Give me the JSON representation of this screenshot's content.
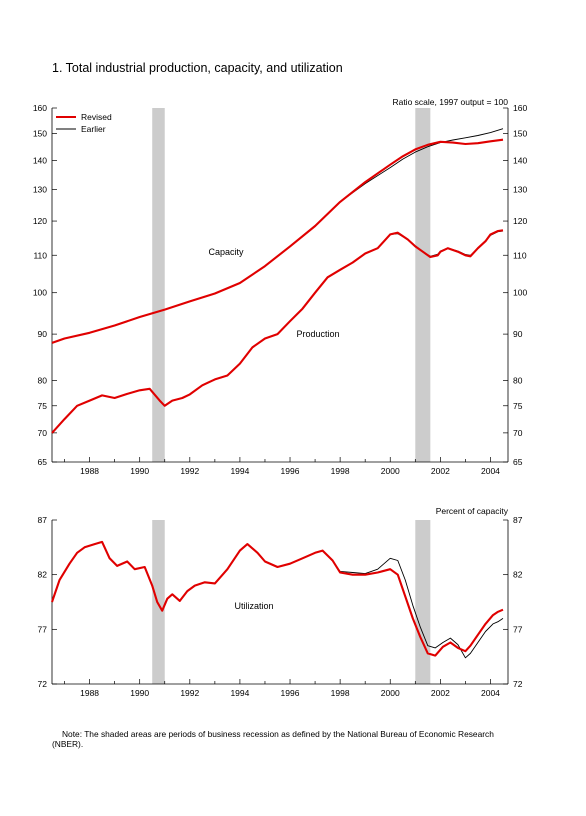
{
  "figure": {
    "title": "1. Total industrial production, capacity, and utilization",
    "note": "Note: The shaded areas are periods of business recession as defined by the National Bureau of Economic Research (NBER)."
  },
  "colors": {
    "revised": "#e00000",
    "earlier": "#000000",
    "recession": "#cccccc"
  },
  "chart_data": [
    {
      "type": "line",
      "title": "",
      "axis_note": "Ratio scale, 1997 output = 100",
      "scale": "log",
      "grid": false,
      "legend_position": "top-left",
      "ylim": [
        65,
        160
      ],
      "xlim": [
        1986.5,
        2004.7
      ],
      "y_ticks": [
        65,
        70,
        75,
        80,
        90,
        100,
        110,
        120,
        130,
        140,
        150,
        160
      ],
      "x_ticks": [
        1988,
        1990,
        1992,
        1994,
        1996,
        1998,
        2000,
        2002,
        2004
      ],
      "x_tick_labels": [
        "1988",
        "1990",
        "1992",
        "1994",
        "1996",
        "1998",
        "2000",
        "2002",
        "2004"
      ],
      "recessions": [
        [
          1990.5,
          1991.0
        ],
        [
          2001.0,
          2001.6
        ]
      ],
      "legend": [
        "Revised",
        "Earlier"
      ],
      "annotations": [
        "Capacity",
        "Production"
      ],
      "series": [
        {
          "name": "Revised",
          "label": "Capacity",
          "x": [
            1986.5,
            1987,
            1988,
            1989,
            1990,
            1991,
            1992,
            1993,
            1994,
            1995,
            1996,
            1997,
            1998,
            1999,
            2000,
            2000.5,
            2001,
            2001.5,
            2002,
            2002.5,
            2003,
            2003.5,
            2004,
            2004.5
          ],
          "y": [
            88,
            89,
            90.3,
            92,
            94,
            95.8,
            97.8,
            99.8,
            102.5,
            107,
            112.5,
            118.5,
            126,
            132.5,
            138.5,
            141.5,
            144,
            145.7,
            146.8,
            146.5,
            146,
            146.3,
            147,
            147.6
          ]
        },
        {
          "name": "Earlier",
          "label": "Capacity",
          "x": [
            1986.5,
            1987,
            1988,
            1989,
            1990,
            1991,
            1992,
            1993,
            1994,
            1995,
            1996,
            1997,
            1998,
            1999,
            2000,
            2000.5,
            2001,
            2001.5,
            2002,
            2002.5,
            2003,
            2003.5,
            2004,
            2004.5
          ],
          "y": [
            88,
            89,
            90.3,
            92,
            94,
            95.8,
            97.8,
            99.8,
            102.5,
            107,
            112.5,
            118.5,
            126,
            132,
            137.5,
            140.5,
            143,
            145,
            146.5,
            147.5,
            148.3,
            149.2,
            150.3,
            151.8
          ]
        },
        {
          "name": "Revised",
          "label": "Production",
          "x": [
            1986.5,
            1987,
            1987.5,
            1988,
            1988.5,
            1989,
            1989.5,
            1990,
            1990.4,
            1990.8,
            1991,
            1991.3,
            1991.7,
            1992,
            1992.5,
            1993,
            1993.5,
            1994,
            1994.5,
            1995,
            1995.5,
            1996,
            1996.5,
            1997,
            1997.5,
            1998,
            1998.5,
            1999,
            1999.5,
            2000,
            2000.3,
            2000.7,
            2001,
            2001.3,
            2001.6,
            2001.9,
            2002,
            2002.3,
            2002.7,
            2003,
            2003.2,
            2003.5,
            2003.8,
            2004,
            2004.3,
            2004.5
          ],
          "y": [
            70,
            72.5,
            75,
            76,
            77,
            76.5,
            77.3,
            78,
            78.3,
            76,
            75,
            76,
            76.5,
            77.2,
            79,
            80.2,
            81,
            83.5,
            87,
            89,
            90,
            93,
            96,
            100,
            104,
            106,
            108,
            110.5,
            112,
            116,
            116.5,
            114.5,
            112.5,
            111,
            109.5,
            110,
            111,
            112,
            111,
            110,
            109.7,
            112,
            114,
            116,
            117,
            117.2
          ]
        },
        {
          "name": "Earlier",
          "label": "Production",
          "x": [
            1986.5,
            1987,
            1987.5,
            1988,
            1988.5,
            1989,
            1989.5,
            1990,
            1990.4,
            1990.8,
            1991,
            1991.3,
            1991.7,
            1992,
            1992.5,
            1993,
            1993.5,
            1994,
            1994.5,
            1995,
            1995.5,
            1996,
            1996.5,
            1997,
            1997.5,
            1998,
            1998.5,
            1999,
            1999.5,
            2000,
            2000.3,
            2000.7,
            2001,
            2001.3,
            2001.6,
            2001.9,
            2002,
            2002.3,
            2002.7,
            2003,
            2003.2,
            2003.5,
            2003.8,
            2004,
            2004.3,
            2004.5
          ],
          "y": [
            70,
            72.5,
            75,
            76,
            77,
            76.5,
            77.3,
            78,
            78.3,
            76,
            75,
            76,
            76.5,
            77.2,
            79,
            80.2,
            81,
            83.5,
            87,
            89,
            90,
            93,
            96,
            100,
            104,
            106,
            108,
            110.5,
            112,
            116,
            116.2,
            114.5,
            112.7,
            111,
            109.7,
            110.3,
            111.2,
            112,
            111.2,
            110.2,
            110,
            112,
            114,
            115.7,
            116.8,
            117
          ]
        }
      ]
    },
    {
      "type": "line",
      "title": "",
      "axis_note": "Percent of capacity",
      "grid": false,
      "ylim": [
        72,
        87
      ],
      "xlim": [
        1986.5,
        2004.7
      ],
      "y_ticks": [
        72,
        77,
        82,
        87
      ],
      "x_ticks": [
        1988,
        1990,
        1992,
        1994,
        1996,
        1998,
        2000,
        2002,
        2004
      ],
      "x_tick_labels": [
        "1988",
        "1990",
        "1992",
        "1994",
        "1996",
        "1998",
        "2000",
        "2002",
        "2004"
      ],
      "recessions": [
        [
          1990.5,
          1991.0
        ],
        [
          2001.0,
          2001.6
        ]
      ],
      "annotations": [
        "Utilization"
      ],
      "series": [
        {
          "name": "Revised",
          "label": "Utilization",
          "x": [
            1986.5,
            1986.8,
            1987.2,
            1987.5,
            1987.8,
            1988.2,
            1988.5,
            1988.8,
            1989.1,
            1989.5,
            1989.8,
            1990.2,
            1990.5,
            1990.7,
            1990.9,
            1991.1,
            1991.3,
            1991.6,
            1991.9,
            1992.2,
            1992.6,
            1993,
            1993.5,
            1994,
            1994.3,
            1994.7,
            1995,
            1995.5,
            1996,
            1996.5,
            1997,
            1997.3,
            1997.7,
            1998,
            1998.5,
            1999,
            1999.5,
            2000,
            2000.3,
            2000.6,
            2000.9,
            2001.2,
            2001.5,
            2001.8,
            2002.1,
            2002.4,
            2002.7,
            2003,
            2003.2,
            2003.5,
            2003.8,
            2004.1,
            2004.3,
            2004.5
          ],
          "y": [
            79.5,
            81.5,
            83,
            84,
            84.5,
            84.8,
            85,
            83.5,
            82.8,
            83.2,
            82.5,
            82.7,
            81,
            79.5,
            78.7,
            79.8,
            80.2,
            79.6,
            80.5,
            81,
            81.3,
            81.2,
            82.5,
            84.2,
            84.8,
            84,
            83.2,
            82.7,
            83,
            83.5,
            84,
            84.2,
            83.3,
            82.2,
            82,
            82,
            82.2,
            82.5,
            82,
            80,
            78,
            76.3,
            74.8,
            74.6,
            75.4,
            75.8,
            75.3,
            75,
            75.5,
            76.5,
            77.5,
            78.3,
            78.6,
            78.8
          ]
        },
        {
          "name": "Earlier",
          "label": "Utilization",
          "x": [
            1986.5,
            1986.8,
            1987.2,
            1987.5,
            1987.8,
            1988.2,
            1988.5,
            1988.8,
            1989.1,
            1989.5,
            1989.8,
            1990.2,
            1990.5,
            1990.7,
            1990.9,
            1991.1,
            1991.3,
            1991.6,
            1991.9,
            1992.2,
            1992.6,
            1993,
            1993.5,
            1994,
            1994.3,
            1994.7,
            1995,
            1995.5,
            1996,
            1996.5,
            1997,
            1997.3,
            1997.7,
            1998,
            1998.5,
            1999,
            1999.5,
            2000,
            2000.3,
            2000.6,
            2000.9,
            2001.2,
            2001.5,
            2001.8,
            2002.1,
            2002.4,
            2002.7,
            2003,
            2003.2,
            2003.5,
            2003.8,
            2004.1,
            2004.3,
            2004.5
          ],
          "y": [
            79.5,
            81.5,
            83,
            84,
            84.5,
            84.8,
            85,
            83.5,
            82.8,
            83.2,
            82.5,
            82.7,
            81,
            79.5,
            78.7,
            79.8,
            80.2,
            79.6,
            80.5,
            81,
            81.3,
            81.2,
            82.5,
            84.2,
            84.8,
            84,
            83.2,
            82.7,
            83,
            83.5,
            84,
            84.2,
            83.3,
            82.3,
            82.2,
            82.1,
            82.5,
            83.5,
            83.3,
            81.5,
            79.2,
            77.2,
            75.5,
            75.3,
            75.8,
            76.2,
            75.6,
            74.4,
            74.8,
            75.8,
            76.8,
            77.5,
            77.7,
            78
          ]
        }
      ]
    }
  ]
}
